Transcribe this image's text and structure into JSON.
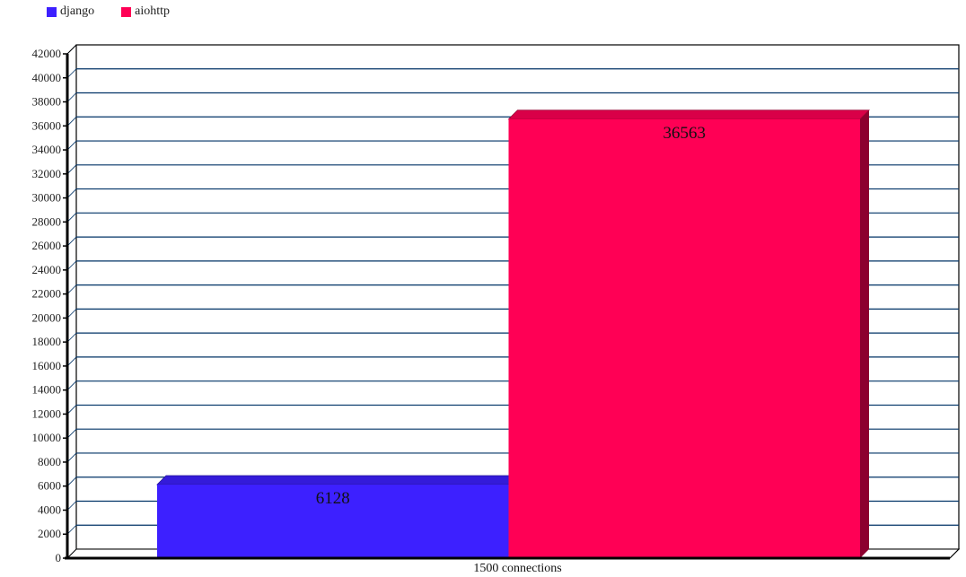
{
  "chart_data": {
    "type": "bar",
    "three_d": true,
    "categories": [
      "1500 connections"
    ],
    "series": [
      {
        "name": "django",
        "values": [
          6128
        ],
        "color": "#3d20ff"
      },
      {
        "name": "aiohttp",
        "values": [
          36563
        ],
        "color": "#ff0055"
      }
    ],
    "title": "",
    "xlabel": "",
    "ylabel": "",
    "ylim": [
      0,
      42000
    ],
    "yticks": [
      0,
      2000,
      4000,
      6000,
      8000,
      10000,
      12000,
      14000,
      16000,
      18000,
      20000,
      22000,
      24000,
      26000,
      28000,
      30000,
      32000,
      34000,
      36000,
      38000,
      40000,
      42000
    ],
    "grid": true,
    "gridline_color": "#003366",
    "legend_position": "top-left",
    "data_labels": true
  }
}
